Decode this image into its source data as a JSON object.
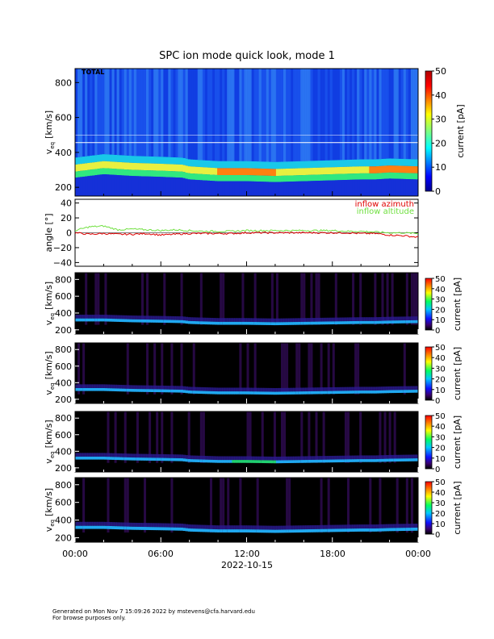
{
  "title": "SPC ion mode quick look, mode 1",
  "footer": {
    "line1": "Generated on Mon Nov  7 15:09:26 2022 by mstevens@cfa.harvard.edu",
    "line2": "For browse purposes only."
  },
  "x_axis": {
    "ticks": [
      "00:00",
      "06:00",
      "12:00",
      "18:00",
      "00:00"
    ],
    "date": "2022-10-15"
  },
  "chart_data": [
    {
      "type": "heatmap",
      "panel": "total",
      "label": "TOTAL",
      "ylabel": "v_eq [km/s]",
      "ylabel_main": "v",
      "ylabel_sub": "eq",
      "ylabel_unit": "[km/s]",
      "yticks": [
        "800",
        "600",
        "400",
        "200"
      ],
      "ylim": [
        150,
        880
      ],
      "colorbar": {
        "label": "current [pA]",
        "ticks": [
          "50",
          "40",
          "30",
          "20",
          "10",
          "0"
        ],
        "range": [
          0,
          50
        ],
        "colormap": "jet"
      },
      "x_hours": [
        0,
        2,
        4,
        6,
        7.5,
        8,
        10,
        12,
        14,
        16,
        18,
        20,
        21,
        22,
        24
      ],
      "core_speed_kms": [
        300,
        320,
        310,
        305,
        300,
        290,
        280,
        280,
        275,
        280,
        285,
        290,
        290,
        295,
        290
      ],
      "background": "#0a2fd8"
    },
    {
      "type": "line",
      "panel": "angle",
      "ylabel": "angle [°]",
      "yticks": [
        "40",
        "20",
        "0",
        "−20",
        "−40"
      ],
      "ylim": [
        -45,
        45
      ],
      "x_hours": [
        0,
        1,
        2,
        3,
        4,
        5,
        6,
        7,
        8,
        9,
        10,
        11,
        12,
        13,
        14,
        15,
        16,
        17,
        18,
        19,
        20,
        21,
        22,
        23,
        24
      ],
      "series": [
        {
          "name": "inflow azimuth",
          "color": "#e00000",
          "values": [
            0,
            -2,
            -1,
            -2,
            -2,
            -1,
            -3,
            -2,
            -1,
            -1,
            -1,
            -1,
            0,
            0,
            0,
            0,
            0,
            0,
            0,
            0,
            -1,
            -1,
            -3,
            -4,
            -6
          ]
        },
        {
          "name": "inflow altitude",
          "color": "#70e040",
          "values": [
            3,
            8,
            9,
            4,
            5,
            4,
            3,
            4,
            3,
            2,
            2,
            2,
            3,
            3,
            3,
            3,
            3,
            3,
            3,
            2,
            2,
            1,
            0,
            0,
            -1
          ]
        }
      ]
    },
    {
      "type": "heatmap",
      "panel": "cup 1",
      "ylabel": "v_eq [km/s]",
      "ylabel_main": "v",
      "ylabel_sub": "eq",
      "ylabel_unit": "[km/s]",
      "yticks": [
        "800",
        "600",
        "400",
        "200"
      ],
      "colorbar": {
        "label": "current [pA]",
        "ticks": [
          "50",
          "40",
          "30",
          "20",
          "10",
          "0"
        ],
        "range": [
          0,
          50
        ]
      },
      "core_speed_kms": [
        320,
        320,
        310,
        305,
        300,
        290,
        280,
        280,
        275,
        280,
        285,
        290,
        290,
        295,
        300
      ],
      "background": "#000000"
    },
    {
      "type": "heatmap",
      "panel": "cup 2",
      "ylabel": "v_eq [km/s]",
      "ylabel_main": "v",
      "ylabel_sub": "eq",
      "ylabel_unit": "[km/s]",
      "yticks": [
        "800",
        "600",
        "400",
        "200"
      ],
      "colorbar": {
        "label": "current [pA]",
        "ticks": [
          "50",
          "40",
          "30",
          "20",
          "10",
          "0"
        ],
        "range": [
          0,
          50
        ]
      },
      "core_speed_kms": [
        320,
        320,
        310,
        305,
        300,
        290,
        280,
        280,
        275,
        280,
        285,
        290,
        290,
        295,
        300
      ],
      "background": "#000000"
    },
    {
      "type": "heatmap",
      "panel": "cup 3",
      "ylabel": "v_eq [km/s]",
      "ylabel_main": "v",
      "ylabel_sub": "eq",
      "ylabel_unit": "[km/s]",
      "yticks": [
        "800",
        "600",
        "400",
        "200"
      ],
      "colorbar": {
        "label": "current [pA]",
        "ticks": [
          "50",
          "40",
          "30",
          "20",
          "10",
          "0"
        ],
        "range": [
          0,
          50
        ]
      },
      "core_speed_kms": [
        320,
        320,
        310,
        305,
        300,
        290,
        280,
        280,
        275,
        280,
        285,
        290,
        290,
        295,
        300
      ],
      "background": "#000000"
    },
    {
      "type": "heatmap",
      "panel": "cup 4",
      "ylabel": "v_eq [km/s]",
      "ylabel_main": "v",
      "ylabel_sub": "eq",
      "ylabel_unit": "[km/s]",
      "yticks": [
        "800",
        "600",
        "400",
        "200"
      ],
      "colorbar": {
        "label": "current [pA]",
        "ticks": [
          "50",
          "40",
          "30",
          "20",
          "10",
          "0"
        ],
        "range": [
          0,
          50
        ]
      },
      "core_speed_kms": [
        320,
        320,
        310,
        305,
        300,
        290,
        280,
        280,
        275,
        280,
        285,
        290,
        290,
        295,
        300
      ],
      "background": "#000000"
    }
  ]
}
